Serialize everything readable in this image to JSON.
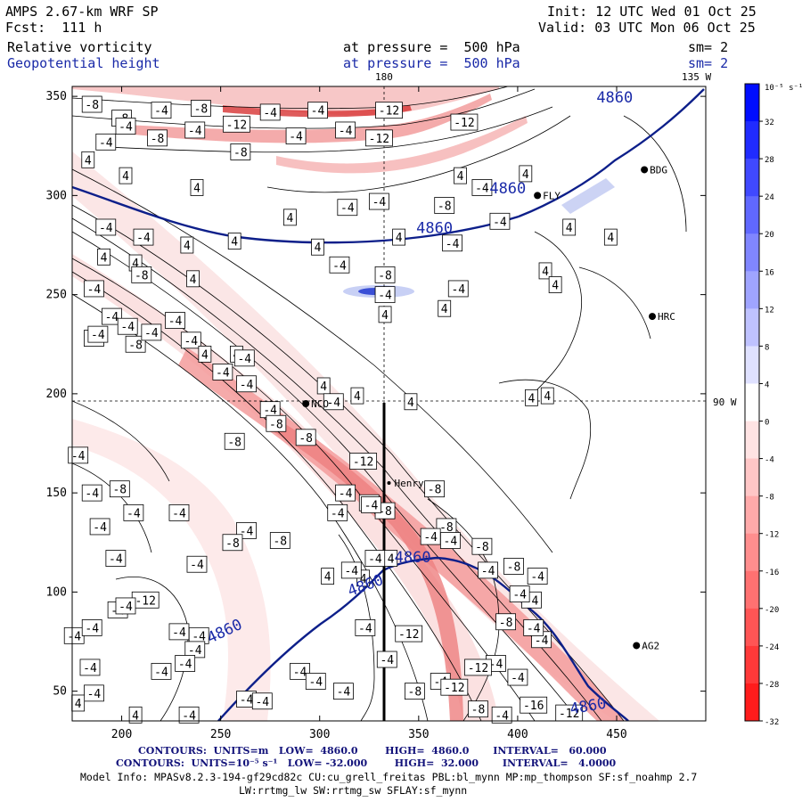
{
  "header": {
    "model": "AMPS 2.67-km WRF SP",
    "forecast": "Fcst:  111 h",
    "init": "Init: 12 UTC Wed 01 Oct 25",
    "valid": "Valid: 03 UTC Mon 06 Oct 25",
    "field1_name": "Relative vorticity",
    "field1_level": "at pressure =  500 hPa",
    "field1_sm": "sm= 2",
    "field2_name": "Geopotential height",
    "field2_level": "at pressure =  500 hPa",
    "field2_sm": "sm= 2"
  },
  "map_labels": {
    "lon_180": "180",
    "lon_135w": "135 W",
    "lon_90w": "90 W"
  },
  "stations": [
    {
      "name": "NCO",
      "x": 293,
      "y": 195
    },
    {
      "name": "Henry",
      "x": 335,
      "y": 155
    },
    {
      "name": "HRC",
      "x": 468,
      "y": 239
    },
    {
      "name": "AG2",
      "x": 460,
      "y": 73
    },
    {
      "name": "BDG",
      "x": 464,
      "y": 313
    },
    {
      "name": "FLY",
      "x": 410,
      "y": 300
    }
  ],
  "chart_data": {
    "type": "contour map",
    "x_ticks": [
      200,
      250,
      300,
      350,
      400,
      450
    ],
    "y_ticks": [
      50,
      100,
      150,
      200,
      250,
      300,
      350
    ],
    "xlim": [
      175,
      495
    ],
    "ylim": [
      35,
      355
    ],
    "colorbar": {
      "unit_label": "10⁻⁵ s⁻¹",
      "ticks": [
        32,
        28,
        24,
        20,
        16,
        12,
        8,
        4,
        0,
        -4,
        -8,
        -12,
        -16,
        -20,
        -24,
        -28,
        -32
      ]
    },
    "height_contour_labels": [
      "4860",
      "4860",
      "4860",
      "4860",
      "4860",
      "4860",
      "4860"
    ],
    "vorticity_labels": [
      "-4",
      "-8",
      "-12",
      "-16",
      "4",
      "8"
    ]
  },
  "footer": {
    "line1": "CONTOURS:  UNITS=m   LOW=  4860.0        HIGH=  4860.0       INTERVAL=   60.000",
    "line2": "CONTOURS:  UNITS=10⁻⁵ s⁻¹   LOW= -32.000        HIGH=  32.000       INTERVAL=   4.0000",
    "line3": "Model Info: MPASv8.2.3-194-gf29cd82c CU:cu_grell_freitas PBL:bl_mynn MP:mp_thompson SF:sf_noahmp 2.7",
    "line4": "LW:rrtmg_lw SW:rrtmg_sw SFLAY:sf_mynn"
  }
}
